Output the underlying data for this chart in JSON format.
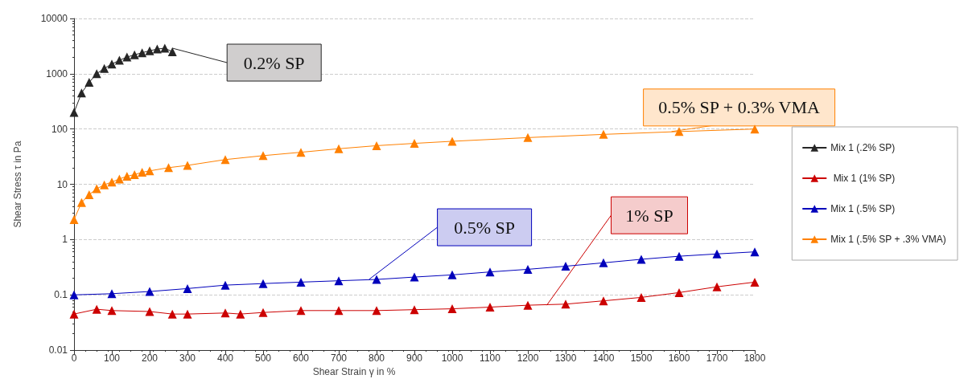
{
  "chart_data": {
    "type": "line",
    "xlabel": "Shear Strain γ in %",
    "ylabel": "Shear Stress τ in Pa",
    "log": "y",
    "grid": "y",
    "legend": "right",
    "marker": "triangle",
    "line_style": "solid",
    "xlim": [
      0,
      1800
    ],
    "xticks": [
      0,
      100,
      200,
      300,
      400,
      500,
      600,
      700,
      800,
      900,
      1000,
      1100,
      1200,
      1300,
      1400,
      1500,
      1600,
      1700,
      1800
    ],
    "ylim": [
      0.01,
      10000
    ],
    "yticks": [
      0.01,
      0.1,
      1,
      10,
      100,
      1000,
      10000
    ],
    "series": [
      {
        "name": "Mix 1 (.2% SP)",
        "color": "#262626",
        "x": [
          0,
          20,
          40,
          60,
          80,
          100,
          120,
          140,
          160,
          180,
          200,
          220,
          240,
          260
        ],
        "values": [
          200,
          450,
          700,
          1000,
          1250,
          1500,
          1750,
          2000,
          2200,
          2400,
          2600,
          2800,
          2900,
          2500
        ]
      },
      {
        "name": " Mix 1 (1% SP)",
        "color": "#cc0000",
        "x": [
          0,
          60,
          100,
          200,
          260,
          300,
          400,
          440,
          500,
          600,
          700,
          800,
          900,
          1000,
          1100,
          1200,
          1300,
          1400,
          1500,
          1600,
          1700,
          1800
        ],
        "values": [
          0.045,
          0.055,
          0.052,
          0.05,
          0.045,
          0.045,
          0.047,
          0.045,
          0.048,
          0.052,
          0.052,
          0.052,
          0.054,
          0.056,
          0.06,
          0.065,
          0.068,
          0.078,
          0.09,
          0.11,
          0.14,
          0.17
        ]
      },
      {
        "name": "Mix 1 (.5% SP)",
        "color": "#0000bb",
        "x": [
          0,
          100,
          200,
          300,
          400,
          500,
          600,
          700,
          800,
          900,
          1000,
          1100,
          1200,
          1300,
          1400,
          1500,
          1600,
          1700,
          1800
        ],
        "values": [
          0.1,
          0.105,
          0.115,
          0.13,
          0.15,
          0.16,
          0.17,
          0.18,
          0.19,
          0.21,
          0.23,
          0.26,
          0.29,
          0.33,
          0.38,
          0.44,
          0.5,
          0.55,
          0.6
        ]
      },
      {
        "name": "Mix 1 (.5% SP + .3% VMA)",
        "color": "#ff8000",
        "x": [
          0,
          20,
          40,
          60,
          80,
          100,
          120,
          140,
          160,
          180,
          200,
          250,
          300,
          400,
          500,
          600,
          700,
          800,
          900,
          1000,
          1200,
          1400,
          1600,
          1800
        ],
        "values": [
          2.3,
          4.7,
          6.5,
          8.3,
          9.8,
          11,
          12.5,
          14,
          15,
          16.5,
          17.5,
          20,
          22,
          28,
          33,
          38,
          44,
          50,
          55,
          60,
          70,
          80,
          90,
          100
        ]
      }
    ],
    "annotations": [
      {
        "text": "0.2% SP",
        "x": 260,
        "y": 2900
      },
      {
        "text": "1% SP",
        "x": 1250,
        "y": 0.065
      },
      {
        "text": "0.5% SP",
        "x": 780,
        "y": 0.19
      },
      {
        "text": "0.5% SP + 0.3% VMA",
        "x": 1580,
        "y": 90
      }
    ]
  }
}
